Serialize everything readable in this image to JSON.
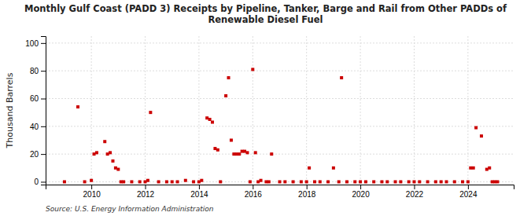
{
  "chart_data": {
    "type": "scatter",
    "title": "Monthly Gulf Coast (PADD 3) Receipts by Pipeline, Tanker, Barge and Rail from Other PADDs of\nRenewable Diesel Fuel",
    "y_label": "Thousand Barrels",
    "annotations": [
      "Source: U.S. Energy Information Administration"
    ],
    "color": "#cc0000",
    "marker": "square",
    "grid": true,
    "xlim": [
      2008.3,
      2025.7
    ],
    "ylim": [
      -2,
      105
    ],
    "xticks": [
      2010,
      2012,
      2014,
      2016,
      2018,
      2020,
      2022,
      2024
    ],
    "yticks": [
      0,
      20,
      40,
      60,
      80,
      100
    ],
    "x": [
      2009.0,
      2009.5,
      2009.75,
      2010.0,
      2010.1,
      2010.2,
      2010.5,
      2010.6,
      2010.7,
      2010.8,
      2010.9,
      2011.0,
      2011.1,
      2011.2,
      2011.5,
      2011.8,
      2012.0,
      2012.1,
      2012.2,
      2012.5,
      2012.8,
      2013.0,
      2013.2,
      2013.5,
      2013.8,
      2014.0,
      2014.1,
      2014.3,
      2014.4,
      2014.5,
      2014.6,
      2014.7,
      2014.8,
      2015.0,
      2015.1,
      2015.2,
      2015.3,
      2015.4,
      2015.5,
      2015.6,
      2015.7,
      2015.8,
      2015.9,
      2016.0,
      2016.1,
      2016.2,
      2016.3,
      2016.5,
      2016.6,
      2016.7,
      2017.0,
      2017.2,
      2017.5,
      2017.8,
      2018.0,
      2018.1,
      2018.3,
      2018.5,
      2018.8,
      2019.0,
      2019.2,
      2019.3,
      2019.5,
      2019.8,
      2020.0,
      2020.2,
      2020.5,
      2020.8,
      2021.0,
      2021.3,
      2021.5,
      2021.8,
      2022.0,
      2022.2,
      2022.5,
      2022.8,
      2023.0,
      2023.2,
      2023.5,
      2023.8,
      2024.0,
      2024.1,
      2024.2,
      2024.3,
      2024.5,
      2024.7,
      2024.8,
      2024.9,
      2025.0,
      2025.1
    ],
    "values": [
      0,
      54,
      0,
      1,
      20,
      21,
      29,
      20,
      21,
      15,
      10,
      9,
      0,
      0,
      0,
      0,
      0,
      1,
      50,
      0,
      0,
      0,
      0,
      1,
      0,
      0,
      1,
      46,
      45,
      43,
      24,
      23,
      0,
      62,
      75,
      30,
      20,
      20,
      20,
      22,
      22,
      21,
      0,
      81,
      21,
      0,
      1,
      0,
      0,
      20,
      0,
      0,
      0,
      0,
      0,
      10,
      0,
      0,
      0,
      10,
      0,
      75,
      0,
      0,
      0,
      0,
      0,
      0,
      0,
      0,
      0,
      0,
      0,
      0,
      0,
      0,
      0,
      0,
      0,
      0,
      0,
      10,
      10,
      39,
      33,
      9,
      10,
      0,
      0,
      0
    ]
  }
}
